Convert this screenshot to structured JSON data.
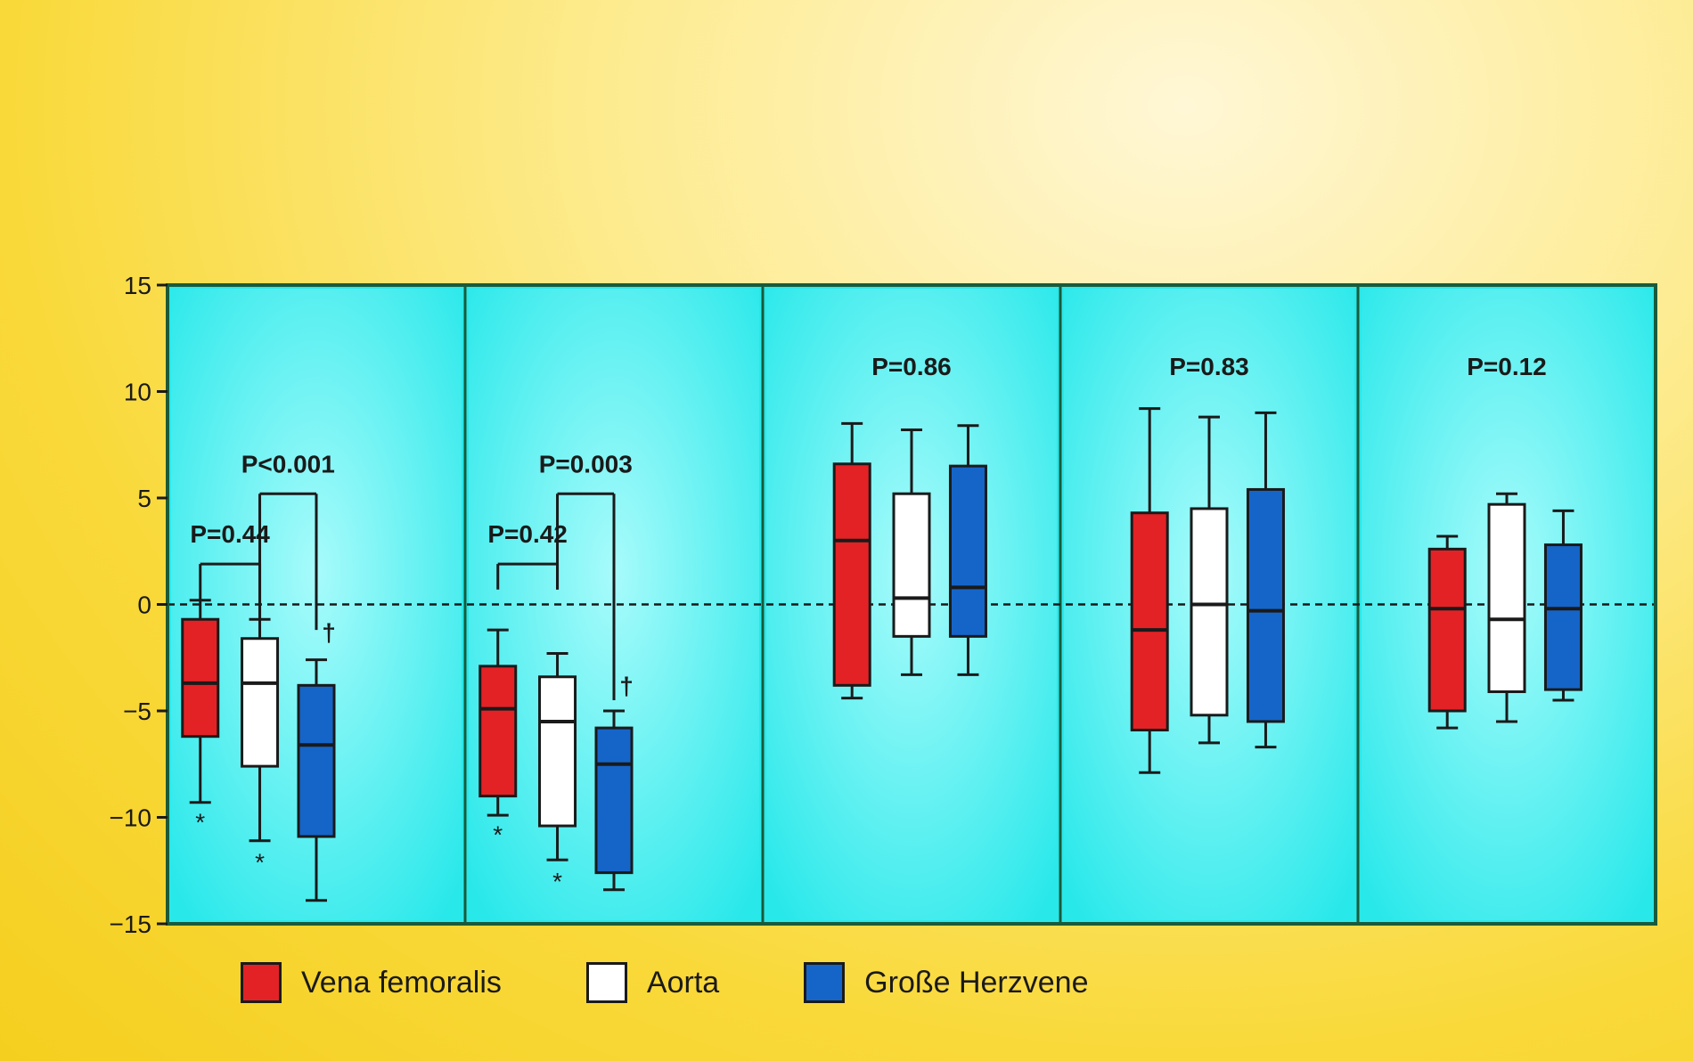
{
  "chart_data": {
    "type": "box",
    "ylim": [
      -15,
      15
    ],
    "yticks": [
      15,
      10,
      5,
      0,
      -5,
      -10,
      -15
    ],
    "ytick_labels": [
      "15",
      "10",
      "5",
      "0",
      "−5",
      "−10",
      "−15"
    ],
    "grid": false,
    "zero_line": "dashed",
    "legend_position": "bottom",
    "series": [
      {
        "name": "Vena femoralis",
        "color": "#e32226"
      },
      {
        "name": "Aorta",
        "color": "#ffffff"
      },
      {
        "name": "Große Herzvene",
        "color": "#1565c8"
      }
    ],
    "panels": [
      {
        "boxes": [
          {
            "series": 0,
            "whislo": -9.3,
            "q1": -6.2,
            "med": -3.7,
            "q3": -0.7,
            "whishi": 0.2,
            "outliers": [
              -10.2
            ]
          },
          {
            "series": 1,
            "whislo": -11.1,
            "q1": -7.6,
            "med": -3.7,
            "q3": -1.6,
            "whishi": -0.7,
            "outliers": [
              -12.1
            ]
          },
          {
            "series": 2,
            "whislo": -13.9,
            "q1": -10.9,
            "med": -6.6,
            "q3": -3.8,
            "whishi": -2.6,
            "outliers": []
          }
        ],
        "comparisons": [
          {
            "label": "P=0.44",
            "from": 0,
            "to": 1,
            "y": 1.9,
            "label_y": 2.9,
            "drop_to": [
              0.2,
              -0.7
            ]
          },
          {
            "label": "P<0.001",
            "from": 1,
            "to": 2,
            "y": 5.2,
            "label_y": 6.2,
            "drop_to": [
              -0.7,
              -1.2
            ]
          }
        ],
        "markers": [
          {
            "box": 2,
            "symbol": "†",
            "y": -1.3
          }
        ]
      },
      {
        "boxes": [
          {
            "series": 0,
            "whislo": -9.9,
            "q1": -9.0,
            "med": -4.9,
            "q3": -2.9,
            "whishi": -1.2,
            "outliers": [
              -10.8
            ]
          },
          {
            "series": 1,
            "whislo": -12.0,
            "q1": -10.4,
            "med": -5.5,
            "q3": -3.4,
            "whishi": -2.3,
            "outliers": [
              -13.0
            ]
          },
          {
            "series": 2,
            "whislo": -13.4,
            "q1": -12.6,
            "med": -7.5,
            "q3": -5.8,
            "whishi": -5.0,
            "outliers": []
          }
        ],
        "comparisons": [
          {
            "label": "P=0.42",
            "from": 0,
            "to": 1,
            "y": 1.9,
            "label_y": 2.9,
            "drop_to": [
              0.7,
              0.7
            ]
          },
          {
            "label": "P=0.003",
            "from": 1,
            "to": 2,
            "y": 5.2,
            "label_y": 6.2,
            "drop_to": [
              0.7,
              -4.5
            ]
          }
        ],
        "markers": [
          {
            "box": 2,
            "symbol": "†",
            "y": -3.8
          }
        ]
      },
      {
        "label": "P=0.86",
        "label_y": 11.2,
        "boxes": [
          {
            "series": 0,
            "whislo": -4.4,
            "q1": -3.8,
            "med": 3.0,
            "q3": 6.6,
            "whishi": 8.5,
            "outliers": []
          },
          {
            "series": 1,
            "whislo": -3.3,
            "q1": -1.5,
            "med": 0.3,
            "q3": 5.2,
            "whishi": 8.2,
            "outliers": []
          },
          {
            "series": 2,
            "whislo": -3.3,
            "q1": -1.5,
            "med": 0.8,
            "q3": 6.5,
            "whishi": 8.4,
            "outliers": []
          }
        ],
        "comparisons": [],
        "markers": []
      },
      {
        "label": "P=0.83",
        "label_y": 11.2,
        "boxes": [
          {
            "series": 0,
            "whislo": -7.9,
            "q1": -5.9,
            "med": -1.2,
            "q3": 4.3,
            "whishi": 9.2,
            "outliers": []
          },
          {
            "series": 1,
            "whislo": -6.5,
            "q1": -5.2,
            "med": 0.0,
            "q3": 4.5,
            "whishi": 8.8,
            "outliers": []
          },
          {
            "series": 2,
            "whislo": -6.7,
            "q1": -5.5,
            "med": -0.3,
            "q3": 5.4,
            "whishi": 9.0,
            "outliers": []
          }
        ],
        "comparisons": [],
        "markers": []
      },
      {
        "label": "P=0.12",
        "label_y": 11.2,
        "boxes": [
          {
            "series": 0,
            "whislo": -5.8,
            "q1": -5.0,
            "med": -0.2,
            "q3": 2.6,
            "whishi": 3.2,
            "outliers": []
          },
          {
            "series": 1,
            "whislo": -5.5,
            "q1": -4.1,
            "med": -0.7,
            "q3": 4.7,
            "whishi": 5.2,
            "outliers": []
          },
          {
            "series": 2,
            "whislo": -4.5,
            "q1": -4.0,
            "med": -0.2,
            "q3": 2.8,
            "whishi": 4.4,
            "outliers": []
          }
        ],
        "comparisons": [],
        "markers": []
      }
    ]
  },
  "colors": {
    "plot_background": "#29e8ea",
    "panel_glow": "#a8fbfb",
    "frame": "#1a5a3a",
    "ink": "#1a1a1a"
  }
}
